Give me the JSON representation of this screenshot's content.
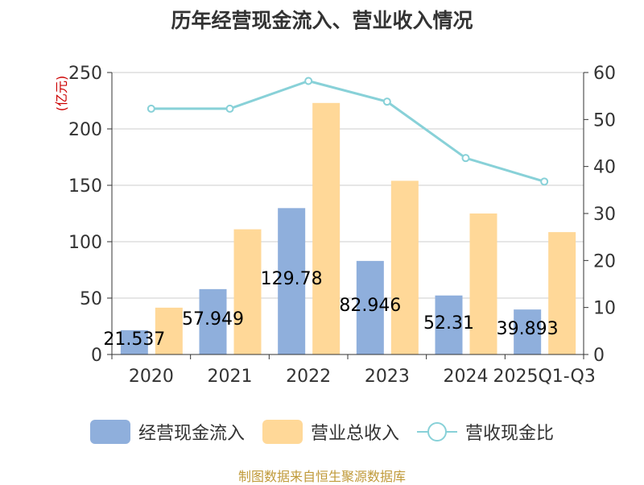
{
  "title": "历年经营现金流入、营业收入情况",
  "source": "制图数据来自恒生聚源数据库",
  "colors": {
    "cash_inflow": "#8FAFDC",
    "revenue": "#FFD898",
    "ratio": "#88D1D8",
    "left_unit": "#cc0000"
  },
  "chart_data": {
    "type": "bar",
    "categories": [
      "2020",
      "2021",
      "2022",
      "2023",
      "2024",
      "2025Q1-Q3"
    ],
    "y_left": {
      "label": "(亿元)",
      "min": 0,
      "max": 250,
      "ticks": [
        "0",
        "50",
        "100",
        "150",
        "200",
        "250"
      ]
    },
    "y_right": {
      "label": "",
      "min": 0,
      "max": 60,
      "ticks": [
        "0",
        "10",
        "20",
        "30",
        "40",
        "50",
        "60"
      ]
    },
    "grid": true,
    "legend_position": "bottom",
    "series": [
      {
        "name": "经营现金流入",
        "type": "bar",
        "axis": "left",
        "values": [
          21.537,
          57.949,
          129.78,
          82.946,
          52.31,
          39.893
        ],
        "labels": [
          "21.537",
          "57.949",
          "129.78",
          "82.946",
          "52.31",
          "39.893"
        ]
      },
      {
        "name": "营业总收入",
        "type": "bar",
        "axis": "left",
        "values": [
          41.5,
          111,
          223,
          154,
          125,
          108.5
        ]
      },
      {
        "name": "营收现金比",
        "type": "line",
        "axis": "right",
        "values": [
          52.3,
          52.3,
          58.2,
          53.8,
          41.8,
          36.8
        ]
      }
    ]
  }
}
